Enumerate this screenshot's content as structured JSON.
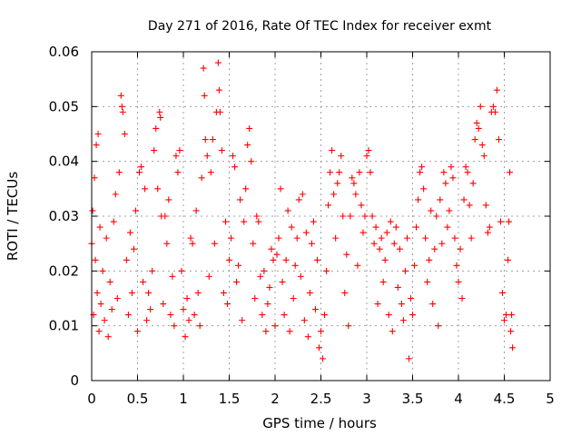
{
  "chart_data": {
    "type": "scatter",
    "title": "Day 271 of 2016, Rate Of TEC Index for receiver exmt",
    "xlabel": "GPS time / hours",
    "ylabel": "ROTI / TECUs",
    "xlim": [
      0,
      5
    ],
    "ylim": [
      0,
      0.06
    ],
    "x_ticks": [
      0,
      0.5,
      1,
      1.5,
      2,
      2.5,
      3,
      3.5,
      4,
      4.5,
      5
    ],
    "x_tick_labels": [
      "0",
      "0.5",
      "1",
      "1.5",
      "2",
      "2.5",
      "3",
      "3.5",
      "4",
      "4.5",
      "5"
    ],
    "y_ticks": [
      0,
      0.01,
      0.02,
      0.03,
      0.04,
      0.05,
      0.06
    ],
    "y_tick_labels": [
      "0",
      "0.01",
      "0.02",
      "0.03",
      "0.04",
      "0.05",
      "0.06"
    ],
    "grid": true,
    "marker": "+",
    "color": "#ff0000",
    "series": [
      {
        "name": "ROTI",
        "points": [
          [
            0.0,
            0.025
          ],
          [
            0.01,
            0.031
          ],
          [
            0.02,
            0.012
          ],
          [
            0.03,
            0.037
          ],
          [
            0.04,
            0.022
          ],
          [
            0.05,
            0.043
          ],
          [
            0.06,
            0.016
          ],
          [
            0.07,
            0.045
          ],
          [
            0.08,
            0.009
          ],
          [
            0.09,
            0.028
          ],
          [
            0.1,
            0.014
          ],
          [
            0.12,
            0.02
          ],
          [
            0.14,
            0.011
          ],
          [
            0.16,
            0.026
          ],
          [
            0.18,
            0.008
          ],
          [
            0.2,
            0.018
          ],
          [
            0.22,
            0.013
          ],
          [
            0.24,
            0.029
          ],
          [
            0.26,
            0.034
          ],
          [
            0.28,
            0.015
          ],
          [
            0.3,
            0.038
          ],
          [
            0.32,
            0.052
          ],
          [
            0.33,
            0.05
          ],
          [
            0.34,
            0.049
          ],
          [
            0.36,
            0.045
          ],
          [
            0.38,
            0.022
          ],
          [
            0.4,
            0.012
          ],
          [
            0.42,
            0.027
          ],
          [
            0.44,
            0.016
          ],
          [
            0.46,
            0.024
          ],
          [
            0.48,
            0.031
          ],
          [
            0.5,
            0.009
          ],
          [
            0.52,
            0.038
          ],
          [
            0.54,
            0.039
          ],
          [
            0.56,
            0.018
          ],
          [
            0.58,
            0.035
          ],
          [
            0.6,
            0.011
          ],
          [
            0.62,
            0.016
          ],
          [
            0.64,
            0.013
          ],
          [
            0.66,
            0.02
          ],
          [
            0.68,
            0.042
          ],
          [
            0.7,
            0.046
          ],
          [
            0.72,
            0.035
          ],
          [
            0.74,
            0.049
          ],
          [
            0.75,
            0.048
          ],
          [
            0.76,
            0.03
          ],
          [
            0.78,
            0.014
          ],
          [
            0.8,
            0.03
          ],
          [
            0.82,
            0.025
          ],
          [
            0.84,
            0.033
          ],
          [
            0.86,
            0.012
          ],
          [
            0.88,
            0.019
          ],
          [
            0.9,
            0.01
          ],
          [
            0.92,
            0.041
          ],
          [
            0.94,
            0.038
          ],
          [
            0.96,
            0.042
          ],
          [
            0.98,
            0.02
          ],
          [
            1.0,
            0.013
          ],
          [
            1.02,
            0.008
          ],
          [
            1.04,
            0.015
          ],
          [
            1.06,
            0.011
          ],
          [
            1.08,
            0.026
          ],
          [
            1.1,
            0.025
          ],
          [
            1.12,
            0.012
          ],
          [
            1.14,
            0.031
          ],
          [
            1.16,
            0.016
          ],
          [
            1.18,
            0.01
          ],
          [
            1.2,
            0.037
          ],
          [
            1.22,
            0.057
          ],
          [
            1.23,
            0.052
          ],
          [
            1.24,
            0.044
          ],
          [
            1.26,
            0.041
          ],
          [
            1.28,
            0.019
          ],
          [
            1.3,
            0.038
          ],
          [
            1.32,
            0.044
          ],
          [
            1.34,
            0.025
          ],
          [
            1.36,
            0.049
          ],
          [
            1.38,
            0.058
          ],
          [
            1.39,
            0.053
          ],
          [
            1.4,
            0.049
          ],
          [
            1.42,
            0.042
          ],
          [
            1.44,
            0.016
          ],
          [
            1.46,
            0.029
          ],
          [
            1.48,
            0.014
          ],
          [
            1.5,
            0.022
          ],
          [
            1.52,
            0.026
          ],
          [
            1.54,
            0.041
          ],
          [
            1.56,
            0.039
          ],
          [
            1.58,
            0.018
          ],
          [
            1.6,
            0.021
          ],
          [
            1.62,
            0.033
          ],
          [
            1.64,
            0.011
          ],
          [
            1.66,
            0.029
          ],
          [
            1.68,
            0.035
          ],
          [
            1.7,
            0.043
          ],
          [
            1.72,
            0.046
          ],
          [
            1.74,
            0.04
          ],
          [
            1.76,
            0.025
          ],
          [
            1.78,
            0.015
          ],
          [
            1.8,
            0.03
          ],
          [
            1.82,
            0.029
          ],
          [
            1.84,
            0.019
          ],
          [
            1.86,
            0.012
          ],
          [
            1.88,
            0.02
          ],
          [
            1.9,
            0.009
          ],
          [
            1.92,
            0.014
          ],
          [
            1.94,
            0.017
          ],
          [
            1.96,
            0.024
          ],
          [
            1.98,
            0.022
          ],
          [
            2.0,
            0.01
          ],
          [
            2.02,
            0.023
          ],
          [
            2.04,
            0.026
          ],
          [
            2.06,
            0.035
          ],
          [
            2.08,
            0.018
          ],
          [
            2.1,
            0.012
          ],
          [
            2.12,
            0.022
          ],
          [
            2.14,
            0.031
          ],
          [
            2.16,
            0.009
          ],
          [
            2.18,
            0.028
          ],
          [
            2.2,
            0.015
          ],
          [
            2.22,
            0.021
          ],
          [
            2.24,
            0.026
          ],
          [
            2.26,
            0.033
          ],
          [
            2.28,
            0.019
          ],
          [
            2.3,
            0.034
          ],
          [
            2.32,
            0.011
          ],
          [
            2.34,
            0.027
          ],
          [
            2.36,
            0.008
          ],
          [
            2.38,
            0.016
          ],
          [
            2.4,
            0.025
          ],
          [
            2.42,
            0.029
          ],
          [
            2.44,
            0.013
          ],
          [
            2.46,
            0.022
          ],
          [
            2.48,
            0.006
          ],
          [
            2.5,
            0.009
          ],
          [
            2.52,
            0.004
          ],
          [
            2.54,
            0.012
          ],
          [
            2.56,
            0.02
          ],
          [
            2.58,
            0.032
          ],
          [
            2.6,
            0.038
          ],
          [
            2.62,
            0.042
          ],
          [
            2.64,
            0.034
          ],
          [
            2.66,
            0.026
          ],
          [
            2.68,
            0.036
          ],
          [
            2.7,
            0.038
          ],
          [
            2.72,
            0.041
          ],
          [
            2.74,
            0.03
          ],
          [
            2.76,
            0.016
          ],
          [
            2.78,
            0.023
          ],
          [
            2.8,
            0.01
          ],
          [
            2.82,
            0.03
          ],
          [
            2.84,
            0.037
          ],
          [
            2.86,
            0.036
          ],
          [
            2.88,
            0.034
          ],
          [
            2.9,
            0.021
          ],
          [
            2.92,
            0.038
          ],
          [
            2.94,
            0.032
          ],
          [
            2.96,
            0.027
          ],
          [
            2.98,
            0.03
          ],
          [
            3.0,
            0.041
          ],
          [
            3.02,
            0.042
          ],
          [
            3.04,
            0.038
          ],
          [
            3.06,
            0.03
          ],
          [
            3.08,
            0.025
          ],
          [
            3.1,
            0.028
          ],
          [
            3.12,
            0.014
          ],
          [
            3.14,
            0.024
          ],
          [
            3.16,
            0.026
          ],
          [
            3.18,
            0.018
          ],
          [
            3.2,
            0.022
          ],
          [
            3.22,
            0.027
          ],
          [
            3.24,
            0.012
          ],
          [
            3.26,
            0.029
          ],
          [
            3.28,
            0.009
          ],
          [
            3.3,
            0.025
          ],
          [
            3.32,
            0.028
          ],
          [
            3.34,
            0.017
          ],
          [
            3.36,
            0.024
          ],
          [
            3.38,
            0.014
          ],
          [
            3.4,
            0.011
          ],
          [
            3.42,
            0.02
          ],
          [
            3.44,
            0.026
          ],
          [
            3.46,
            0.004
          ],
          [
            3.48,
            0.015
          ],
          [
            3.5,
            0.012
          ],
          [
            3.52,
            0.021
          ],
          [
            3.54,
            0.028
          ],
          [
            3.56,
            0.033
          ],
          [
            3.58,
            0.038
          ],
          [
            3.6,
            0.039
          ],
          [
            3.62,
            0.035
          ],
          [
            3.64,
            0.026
          ],
          [
            3.66,
            0.018
          ],
          [
            3.68,
            0.022
          ],
          [
            3.7,
            0.031
          ],
          [
            3.72,
            0.014
          ],
          [
            3.74,
            0.024
          ],
          [
            3.76,
            0.03
          ],
          [
            3.78,
            0.01
          ],
          [
            3.8,
            0.033
          ],
          [
            3.82,
            0.025
          ],
          [
            3.84,
            0.038
          ],
          [
            3.86,
            0.036
          ],
          [
            3.88,
            0.028
          ],
          [
            3.9,
            0.031
          ],
          [
            3.92,
            0.039
          ],
          [
            3.94,
            0.037
          ],
          [
            3.96,
            0.026
          ],
          [
            3.98,
            0.021
          ],
          [
            4.0,
            0.018
          ],
          [
            4.02,
            0.024
          ],
          [
            4.04,
            0.015
          ],
          [
            4.06,
            0.033
          ],
          [
            4.08,
            0.039
          ],
          [
            4.1,
            0.038
          ],
          [
            4.12,
            0.032
          ],
          [
            4.14,
            0.026
          ],
          [
            4.16,
            0.036
          ],
          [
            4.18,
            0.044
          ],
          [
            4.2,
            0.047
          ],
          [
            4.22,
            0.046
          ],
          [
            4.24,
            0.05
          ],
          [
            4.26,
            0.043
          ],
          [
            4.28,
            0.041
          ],
          [
            4.3,
            0.032
          ],
          [
            4.32,
            0.027
          ],
          [
            4.34,
            0.028
          ],
          [
            4.36,
            0.049
          ],
          [
            4.38,
            0.05
          ],
          [
            4.4,
            0.049
          ],
          [
            4.42,
            0.053
          ],
          [
            4.44,
            0.044
          ],
          [
            4.46,
            0.029
          ],
          [
            4.48,
            0.016
          ],
          [
            4.5,
            0.011
          ],
          [
            4.52,
            0.012
          ],
          [
            4.54,
            0.022
          ],
          [
            4.55,
            0.029
          ],
          [
            4.56,
            0.038
          ],
          [
            4.57,
            0.009
          ],
          [
            4.58,
            0.012
          ],
          [
            4.59,
            0.006
          ]
        ]
      }
    ]
  }
}
